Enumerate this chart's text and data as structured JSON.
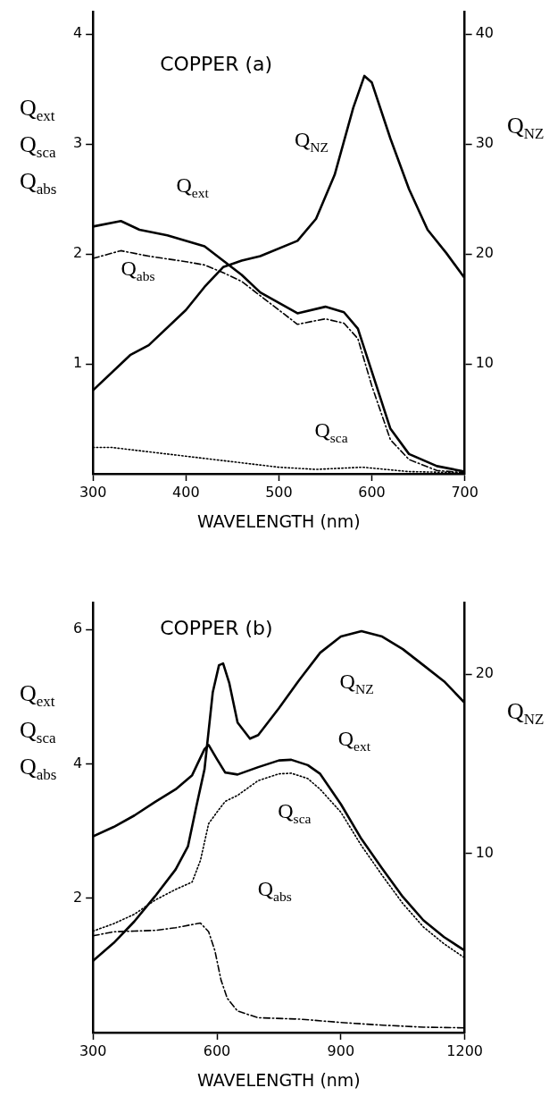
{
  "chart_data": [
    {
      "type": "line",
      "title": "COPPER (a)",
      "xlabel": "WAVELENGTH (nm)",
      "ylabel": "Q$_{ext}$ Q$_{sca}$ Q$_{abs}$",
      "y2label": "Q$_{NZ}$",
      "xlim": [
        300,
        700
      ],
      "xticks": [
        300,
        400,
        500,
        600,
        700
      ],
      "ylim": [
        0,
        4.2
      ],
      "yticks": [
        1,
        2,
        3,
        4
      ],
      "y2lim": [
        0,
        42
      ],
      "y2ticks": [
        10,
        20,
        30,
        40
      ],
      "marker": "none",
      "series": [
        {
          "name": "Q$_{NZ}$",
          "color": "#000000",
          "line_style": "solid",
          "axis": "y2",
          "x": [
            300,
            340,
            360,
            400,
            420,
            440,
            460,
            480,
            520,
            540,
            560,
            580,
            592,
            600,
            620,
            640,
            660,
            680,
            700
          ],
          "values": [
            7.6,
            10.8,
            11.7,
            14.9,
            17.0,
            18.8,
            19.4,
            19.8,
            21.2,
            23.2,
            27.2,
            33.3,
            36.2,
            35.6,
            30.5,
            25.9,
            22.2,
            20.1,
            17.8
          ]
        },
        {
          "name": "Q$_{ext}$",
          "color": "#000000",
          "line_style": "solid",
          "x": [
            300,
            330,
            350,
            380,
            420,
            440,
            460,
            480,
            520,
            550,
            570,
            585,
            600,
            620,
            640,
            670,
            700
          ],
          "values": [
            2.25,
            2.3,
            2.22,
            2.17,
            2.07,
            1.94,
            1.81,
            1.65,
            1.46,
            1.52,
            1.47,
            1.32,
            0.93,
            0.41,
            0.18,
            0.07,
            0.02
          ]
        },
        {
          "name": "Q$_{abs}$",
          "color": "#000000",
          "line_style": "dashed",
          "x": [
            300,
            330,
            360,
            400,
            420,
            440,
            460,
            480,
            520,
            550,
            570,
            585,
            600,
            620,
            640,
            670,
            700
          ],
          "values": [
            1.96,
            2.03,
            1.98,
            1.93,
            1.9,
            1.83,
            1.75,
            1.62,
            1.36,
            1.41,
            1.37,
            1.23,
            0.8,
            0.31,
            0.13,
            0.03,
            0.01
          ]
        },
        {
          "name": "Q$_{sca}$",
          "color": "#000000",
          "line_style": "dotted",
          "x": [
            300,
            320,
            400,
            450,
            500,
            540,
            590,
            640,
            700
          ],
          "values": [
            0.24,
            0.24,
            0.16,
            0.11,
            0.06,
            0.04,
            0.06,
            0.02,
            0.01
          ]
        }
      ]
    },
    {
      "type": "line",
      "title": "COPPER (b)",
      "xlabel": "WAVELENGTH (nm)",
      "ylabel": "Q$_{ext}$ Q$_{sca}$ Q$_{abs}$",
      "y2label": "Q$_{NZ}$",
      "xlim": [
        300,
        1200
      ],
      "xticks": [
        300,
        600,
        900,
        1200
      ],
      "ylim": [
        0,
        6.4
      ],
      "yticks": [
        2,
        4,
        6
      ],
      "y2lim": [
        0,
        24
      ],
      "y2ticks": [
        10,
        20
      ],
      "marker": "none",
      "series": [
        {
          "name": "Q$_{NZ}$",
          "color": "#000000",
          "line_style": "solid",
          "axis": "y2",
          "x": [
            300,
            350,
            400,
            450,
            500,
            530,
            550,
            570,
            590,
            605,
            615,
            630,
            650,
            680,
            700,
            750,
            800,
            850,
            900,
            950,
            1000,
            1050,
            1100,
            1150,
            1200
          ],
          "values": [
            4.0,
            5.0,
            6.2,
            7.6,
            9.1,
            10.4,
            12.6,
            14.7,
            19.0,
            20.5,
            20.6,
            19.5,
            17.3,
            16.4,
            16.6,
            18.1,
            19.7,
            21.2,
            22.1,
            22.4,
            22.1,
            21.4,
            20.5,
            19.6,
            18.4
          ]
        },
        {
          "name": "Q$_{ext}$",
          "color": "#000000",
          "line_style": "solid",
          "x": [
            300,
            350,
            400,
            450,
            500,
            540,
            570,
            580,
            600,
            620,
            650,
            700,
            750,
            780,
            820,
            850,
            900,
            950,
            1000,
            1050,
            1100,
            1150,
            1200
          ],
          "values": [
            2.92,
            3.06,
            3.23,
            3.43,
            3.62,
            3.83,
            4.22,
            4.28,
            4.07,
            3.87,
            3.84,
            3.95,
            4.05,
            4.06,
            3.98,
            3.85,
            3.4,
            2.88,
            2.44,
            2.02,
            1.67,
            1.42,
            1.22
          ]
        },
        {
          "name": "Q$_{sca}$",
          "color": "#000000",
          "line_style": "dotted",
          "x": [
            300,
            350,
            400,
            450,
            500,
            540,
            560,
            580,
            600,
            620,
            650,
            700,
            750,
            780,
            820,
            850,
            900,
            950,
            1000,
            1050,
            1100,
            1150,
            1200
          ],
          "values": [
            1.51,
            1.62,
            1.76,
            1.97,
            2.13,
            2.24,
            2.56,
            3.11,
            3.28,
            3.44,
            3.53,
            3.75,
            3.85,
            3.86,
            3.78,
            3.62,
            3.28,
            2.78,
            2.34,
            1.92,
            1.57,
            1.32,
            1.11
          ]
        },
        {
          "name": "Q$_{abs}$",
          "color": "#000000",
          "line_style": "dashed",
          "x": [
            300,
            350,
            400,
            450,
            500,
            560,
            580,
            595,
            610,
            625,
            650,
            700,
            800,
            900,
            1000,
            1100,
            1200
          ],
          "values": [
            1.44,
            1.5,
            1.51,
            1.52,
            1.56,
            1.63,
            1.5,
            1.22,
            0.78,
            0.51,
            0.32,
            0.22,
            0.2,
            0.15,
            0.11,
            0.08,
            0.07
          ]
        }
      ]
    }
  ]
}
